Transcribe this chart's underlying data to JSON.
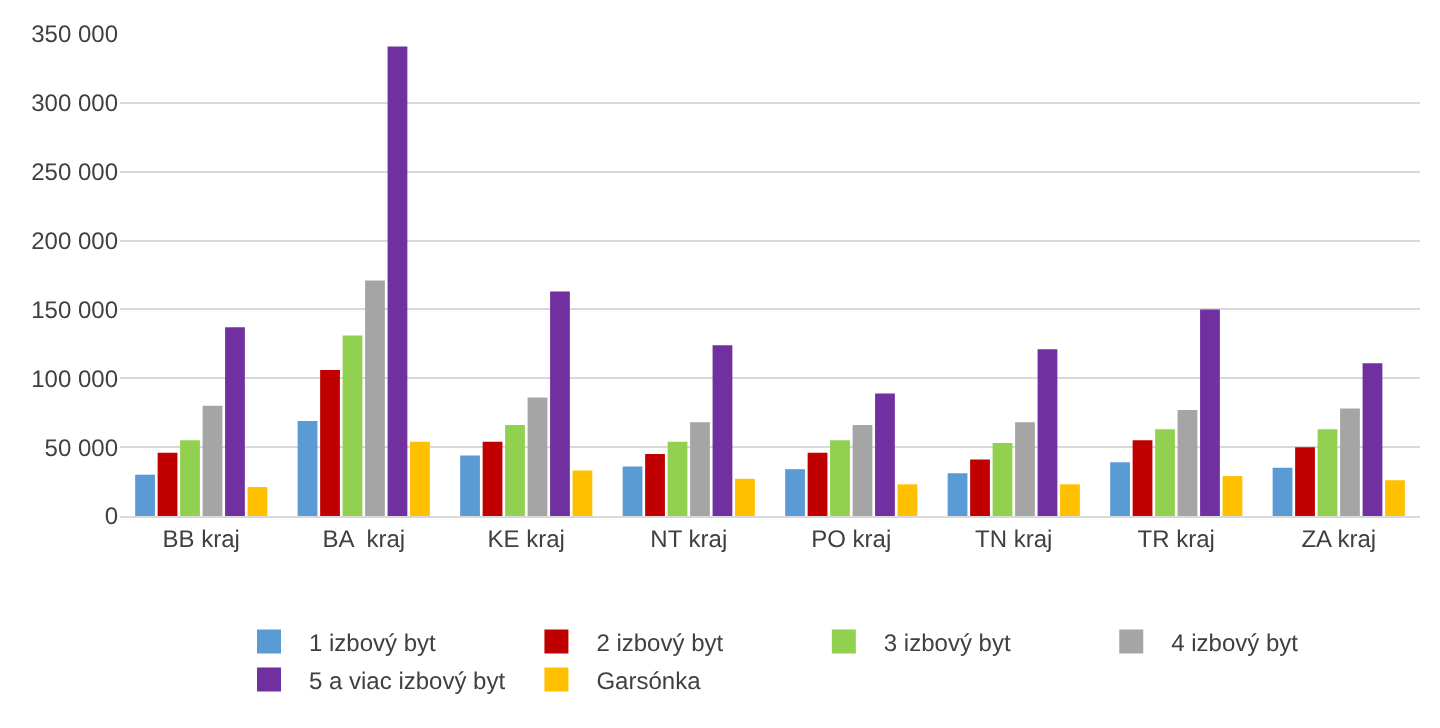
{
  "chart_data": {
    "type": "bar",
    "categories": [
      "BB kraj",
      "BA  kraj",
      "KE kraj",
      "NT kraj",
      "PO kraj",
      "TN kraj",
      "TR kraj",
      "ZA kraj"
    ],
    "series": [
      {
        "name": "1 izbový byt",
        "color": "#5b9bd5",
        "values": [
          30000,
          69000,
          44000,
          36000,
          34000,
          31000,
          39000,
          35000
        ]
      },
      {
        "name": "2 izbový byt",
        "color": "#c00000",
        "values": [
          46000,
          106000,
          54000,
          45000,
          46000,
          41000,
          55000,
          50000
        ]
      },
      {
        "name": "3 izbový byt",
        "color": "#92d050",
        "values": [
          55000,
          131000,
          66000,
          54000,
          55000,
          53000,
          63000,
          63000
        ]
      },
      {
        "name": "4 izbový byt",
        "color": "#a5a5a5",
        "values": [
          80000,
          171000,
          86000,
          68000,
          66000,
          68000,
          77000,
          78000
        ]
      },
      {
        "name": "5 a viac izbový byt",
        "color": "#7030a0",
        "values": [
          137000,
          341000,
          163000,
          124000,
          89000,
          121000,
          150000,
          111000
        ]
      },
      {
        "name": "Garsónka",
        "color": "#ffc000",
        "values": [
          21000,
          54000,
          33000,
          27000,
          23000,
          23000,
          29000,
          26000
        ]
      }
    ],
    "ylim": [
      0,
      350000
    ],
    "yticks": [
      0,
      {
        "value": 50000,
        "label": "50 000"
      },
      {
        "value": 100000,
        "label": "100 000"
      },
      {
        "value": 150000,
        "label": "150 000"
      },
      {
        "value": 200000,
        "label": "200 000"
      },
      {
        "value": 250000,
        "label": "250 000"
      },
      {
        "value": 300000,
        "label": "300 000"
      },
      {
        "value": 350000,
        "label": "350 000"
      }
    ],
    "grid": "y",
    "legend": "bottom"
  }
}
